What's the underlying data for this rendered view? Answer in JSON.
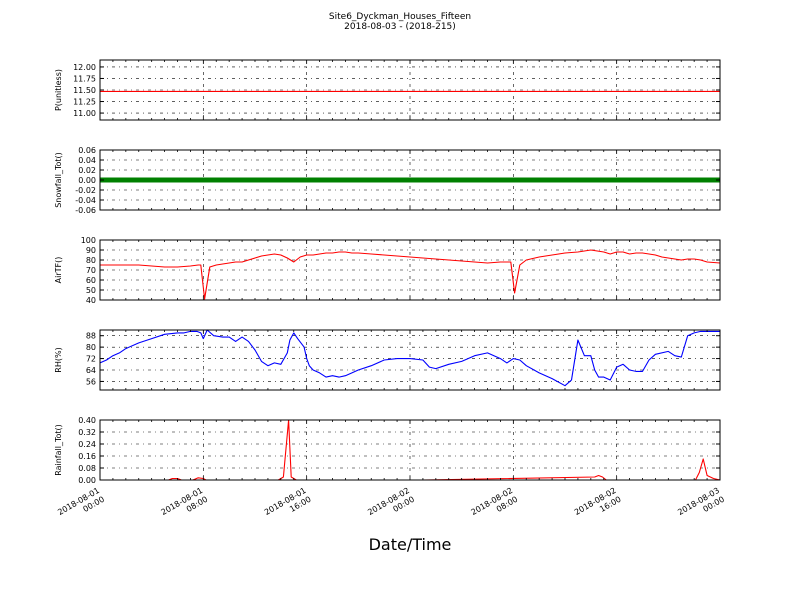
{
  "figure": {
    "title_line1": "Site6_Dyckman_Houses_Fifteen",
    "title_line2": "2018-08-03 - (2018-215)",
    "xlabel": "Date/Time"
  },
  "x_ticks": [
    {
      "line1": "2018-08-01",
      "line2": "00:00"
    },
    {
      "line1": "2018-08-01",
      "line2": "08:00"
    },
    {
      "line1": "2018-08-01",
      "line2": "16:00"
    },
    {
      "line1": "2018-08-02",
      "line2": "00:00"
    },
    {
      "line1": "2018-08-02",
      "line2": "08:00"
    },
    {
      "line1": "2018-08-02",
      "line2": "16:00"
    },
    {
      "line1": "2018-08-03",
      "line2": "00:00"
    }
  ],
  "chart_data": [
    {
      "type": "line",
      "ylabel": "P(unitless)",
      "xlim": [
        0,
        48
      ],
      "ylim": [
        10.85,
        12.15
      ],
      "yticks": [
        11.0,
        11.25,
        11.5,
        11.75,
        12.0
      ],
      "ytick_labels": [
        "11.00",
        "11.25",
        "11.50",
        "11.75",
        "12.00"
      ],
      "grid": true,
      "series": [
        {
          "color": "#ff0000",
          "x": [
            0,
            48
          ],
          "y": [
            11.47,
            11.47
          ]
        }
      ]
    },
    {
      "type": "line",
      "ylabel": "Snowfall_Tot()",
      "xlim": [
        0,
        48
      ],
      "ylim": [
        -0.06,
        0.06
      ],
      "yticks": [
        -0.06,
        -0.04,
        -0.02,
        0.0,
        0.02,
        0.04,
        0.06
      ],
      "ytick_labels": [
        "-0.06",
        "-0.04",
        "-0.02",
        "0.00",
        "0.02",
        "0.04",
        "0.06"
      ],
      "grid": true,
      "series": [
        {
          "color": "#008000",
          "marker": "dot",
          "x": [
            0,
            48
          ],
          "y": [
            0.0,
            0.0
          ]
        }
      ]
    },
    {
      "type": "line",
      "ylabel": "AirTF()",
      "xlim": [
        0,
        48
      ],
      "ylim": [
        40,
        100
      ],
      "yticks": [
        40,
        50,
        60,
        70,
        80,
        90,
        100
      ],
      "ytick_labels": [
        "40",
        "50",
        "60",
        "70",
        "80",
        "90",
        "100"
      ],
      "grid": true,
      "series": [
        {
          "color": "#ff0000",
          "x": [
            0,
            1,
            2,
            3,
            4,
            5,
            6,
            7,
            7.6,
            7.8,
            8.1,
            8.5,
            9,
            9.5,
            10,
            10.5,
            11,
            11.5,
            12,
            12.5,
            13,
            13.5,
            14,
            14.5,
            15,
            15.5,
            16,
            16.5,
            17,
            17.5,
            18,
            18.5,
            19,
            19.5,
            20,
            21,
            22,
            23,
            24,
            25,
            26,
            27,
            28,
            29,
            30,
            31,
            31.6,
            31.8,
            32.1,
            32.5,
            33,
            34,
            35,
            36,
            37,
            37.5,
            38,
            38.5,
            39,
            39.5,
            40,
            40.5,
            41,
            41.5,
            42,
            42.5,
            43,
            43.5,
            44,
            44.5,
            45,
            45.5,
            46,
            46.5,
            47,
            48
          ],
          "y": [
            75,
            75,
            75,
            75,
            74,
            73,
            73,
            74,
            75,
            75,
            41,
            73,
            75,
            76,
            77,
            78,
            78,
            80,
            82,
            84,
            85,
            86,
            85,
            82,
            78,
            83,
            85,
            85,
            86,
            87,
            87,
            88,
            88,
            87,
            87,
            86,
            85,
            84,
            83,
            82,
            81,
            80,
            79,
            78,
            77,
            78,
            78,
            78,
            47,
            75,
            80,
            83,
            85,
            87,
            88,
            89,
            90,
            89,
            88,
            86,
            88,
            88,
            86,
            87,
            87,
            86,
            85,
            83,
            82,
            81,
            80,
            81,
            81,
            80,
            78,
            77
          ]
        }
      ]
    },
    {
      "type": "line",
      "ylabel": "RH(%)",
      "xlim": [
        0,
        48
      ],
      "ylim": [
        50,
        92
      ],
      "yticks": [
        56,
        64,
        72,
        80,
        88
      ],
      "ytick_labels": [
        "56",
        "64",
        "72",
        "80",
        "88"
      ],
      "grid": true,
      "series": [
        {
          "color": "#0000ff",
          "x": [
            0,
            0.5,
            1,
            1.5,
            2,
            3,
            4,
            5,
            6,
            6.5,
            7,
            7.5,
            7.8,
            8,
            8.3,
            8.8,
            9.5,
            10,
            10.5,
            11,
            11.5,
            12,
            12.5,
            13,
            13.5,
            14,
            14.5,
            14.7,
            15,
            15.3,
            15.8,
            16,
            16.2,
            16.5,
            17,
            17.5,
            18,
            18.5,
            19,
            19.5,
            20,
            21,
            22,
            23,
            24,
            25,
            25.5,
            26,
            27,
            28,
            29,
            30,
            31,
            31.5,
            32,
            32.5,
            33,
            34,
            35,
            36,
            36.5,
            37,
            37.5,
            38,
            38.3,
            38.6,
            39,
            39.5,
            40,
            40.5,
            41,
            41.5,
            42,
            42.5,
            43,
            44,
            44.5,
            45,
            45.5,
            46,
            46.5,
            47,
            48
          ],
          "y": [
            69,
            71,
            74,
            76,
            79,
            83,
            86,
            89,
            90,
            90,
            91,
            91,
            90,
            86,
            92,
            88,
            87,
            87,
            84,
            87,
            84,
            78,
            70,
            67,
            69,
            68,
            76,
            85,
            90,
            86,
            80,
            72,
            67,
            64,
            62,
            59,
            60,
            59,
            60,
            62,
            64,
            67,
            71,
            72,
            72,
            71,
            66,
            65,
            68,
            70,
            74,
            76,
            72,
            69,
            72,
            71,
            67,
            62,
            58,
            53,
            57,
            85,
            74,
            74,
            64,
            59,
            59,
            57,
            66,
            68,
            64,
            63,
            63,
            71,
            75,
            77,
            74,
            73,
            88,
            90,
            91,
            91,
            91
          ]
        }
      ]
    },
    {
      "type": "line",
      "ylabel": "Rainfall_Tot()",
      "xlim": [
        0,
        48
      ],
      "ylim": [
        0.0,
        0.4
      ],
      "yticks": [
        0.0,
        0.08,
        0.16,
        0.24,
        0.32,
        0.4
      ],
      "ytick_labels": [
        "0.00",
        "0.08",
        "0.16",
        "0.24",
        "0.32",
        "0.40"
      ],
      "grid": true,
      "series": [
        {
          "color": "#ff0000",
          "x": [
            0,
            5.3,
            5.6,
            6.0,
            6.3,
            7.2,
            7.6,
            8.0,
            8.2,
            13.8,
            14.2,
            14.6,
            14.8,
            15.2,
            25,
            38.3,
            38.6,
            38.9,
            39.2,
            46.1,
            46.4,
            46.7,
            47.0,
            47.5,
            48
          ],
          "y": [
            0,
            0,
            0.01,
            0.01,
            0,
            0,
            0.015,
            0.01,
            0,
            0,
            0.02,
            0.4,
            0.02,
            0,
            0,
            0.02,
            0.03,
            0.02,
            0,
            0,
            0.05,
            0.14,
            0.03,
            0.01,
            0
          ]
        }
      ]
    }
  ]
}
